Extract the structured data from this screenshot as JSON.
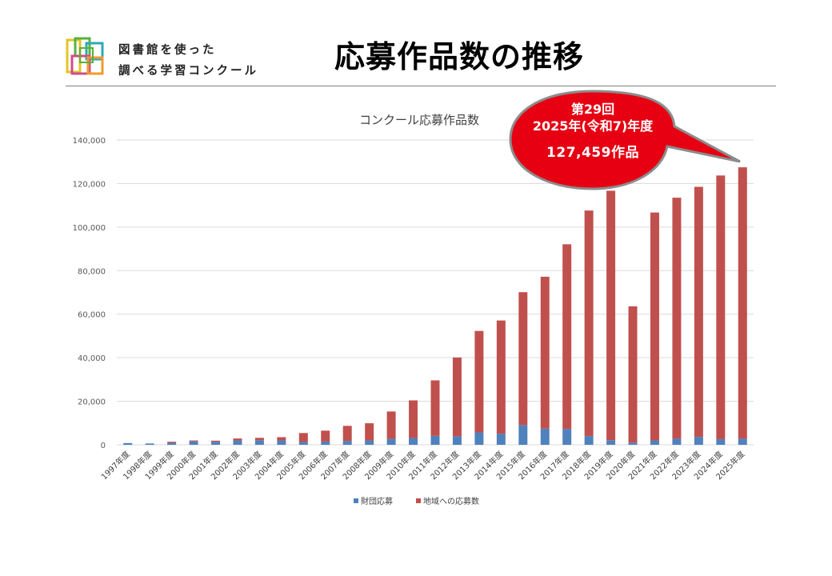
{
  "header": {
    "brand_line1": "図書館を使った",
    "brand_line2": "調べる学習コンクール",
    "page_title": "応募作品数の推移",
    "logo_colors": [
      "#e6c229",
      "#57b13d",
      "#2fa8b5",
      "#d04c8a",
      "#f29a2e"
    ]
  },
  "callout": {
    "line1": "第29回",
    "line2": "2025年(令和7)年度",
    "line3": "127,459作品",
    "fill_color": "#e60012",
    "border_color": "#8c8c8c"
  },
  "chart_data": {
    "type": "bar",
    "stacked": true,
    "title": "コンクール応募作品数",
    "categories": [
      "1997年度",
      "1998年度",
      "1999年度",
      "2000年度",
      "2001年度",
      "2002年度",
      "2003年度",
      "2004年度",
      "2005年度",
      "2006年度",
      "2007年度",
      "2008年度",
      "2009年度",
      "2010年度",
      "2011年度",
      "2012年度",
      "2013年度",
      "2014年度",
      "2015年度",
      "2016年度",
      "2017年度",
      "2018年度",
      "2019年度",
      "2020年度",
      "2021年度",
      "2022年度",
      "2023年度",
      "2024年度",
      "2025年度"
    ],
    "series": [
      {
        "name": "財団応募",
        "color": "#4f81bd",
        "values": [
          800,
          600,
          900,
          1600,
          1400,
          2000,
          2100,
          2000,
          1300,
          1500,
          1800,
          2000,
          2700,
          3100,
          4100,
          3900,
          5700,
          5100,
          9100,
          7400,
          7300,
          4000,
          2100,
          1000,
          2000,
          2800,
          3600,
          2600,
          2800
        ]
      },
      {
        "name": "地域への応募数",
        "color": "#c0504d",
        "values": [
          0,
          0,
          500,
          400,
          500,
          900,
          1100,
          1500,
          4100,
          5000,
          6900,
          7900,
          12600,
          17300,
          25500,
          36200,
          46600,
          52000,
          61000,
          69800,
          84800,
          103600,
          114600,
          62600,
          104700,
          110700,
          114900,
          121100,
          124659
        ]
      }
    ],
    "ylim": [
      0,
      140000
    ],
    "yticks": [
      0,
      20000,
      40000,
      60000,
      80000,
      100000,
      120000,
      140000
    ],
    "ytick_labels": [
      "0",
      "20,000",
      "40,000",
      "60,000",
      "80,000",
      "100,000",
      "120,000",
      "140,000"
    ],
    "grid": true,
    "legend_position": "bottom"
  }
}
